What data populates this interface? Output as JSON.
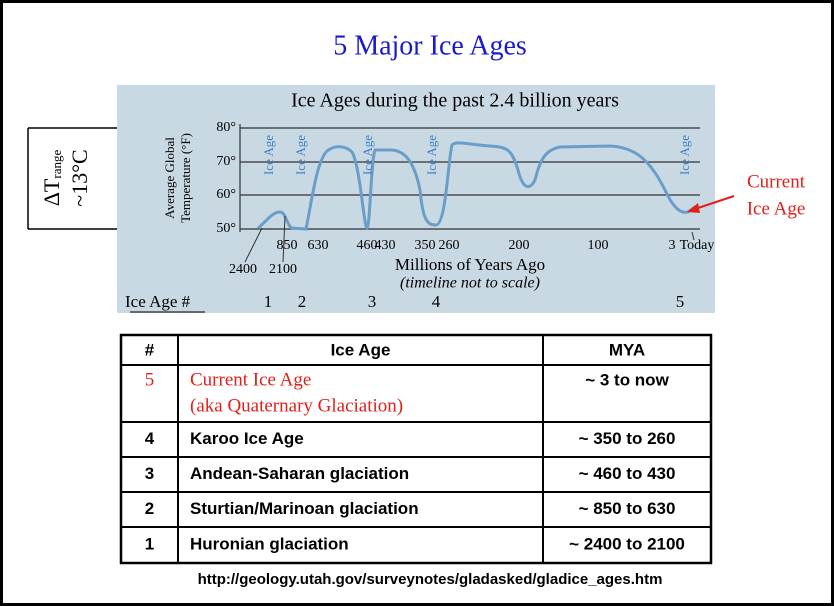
{
  "title": "5 Major Ice Ages",
  "delta_t": {
    "symbol": "ΔT",
    "subscript": "range",
    "value": "~13°C"
  },
  "chart": {
    "title": "Ice Ages during the past 2.4 billion years",
    "y_label": [
      "Average Global",
      "Temperature (°F)"
    ],
    "y_ticks": [
      "80°",
      "70°",
      "60°",
      "50°"
    ],
    "x_ticks": [
      "850",
      "630",
      "460",
      "430",
      "350",
      "260",
      "200",
      "100",
      "3",
      "Today"
    ],
    "x_ticks_low": [
      "2400",
      "2100"
    ],
    "x_label": "Millions of Years Ago",
    "x_note": "(timeline not to scale)",
    "ice_age_labels": [
      "Ice Age",
      "Ice Age",
      "Ice Age",
      "Ice Age",
      "Ice Age"
    ],
    "callout": [
      "Current",
      "Ice Age"
    ],
    "ice_age_row": {
      "label": "Ice Age #",
      "numbers": [
        "1",
        "2",
        "3",
        "4",
        "5"
      ]
    }
  },
  "table": {
    "header": [
      "#",
      "Ice Age",
      "MYA"
    ],
    "rows": [
      [
        "5",
        [
          "Current Ice Age",
          "(aka Quaternary Glaciation)"
        ],
        "~ 3 to now"
      ],
      [
        "4",
        [
          "Karoo Ice Age"
        ],
        "~ 350 to 260"
      ],
      [
        "3",
        [
          "Andean-Saharan glaciation"
        ],
        "~ 460 to 430"
      ],
      [
        "2",
        [
          "Sturtian/Marinoan glaciation"
        ],
        "~ 850 to 630"
      ],
      [
        "1",
        [
          "Huronian glaciation"
        ],
        "~ 2400 to 2100"
      ]
    ]
  },
  "source": "http://geology.utah.gov/surveynotes/gladasked/gladice_ages.htm"
}
